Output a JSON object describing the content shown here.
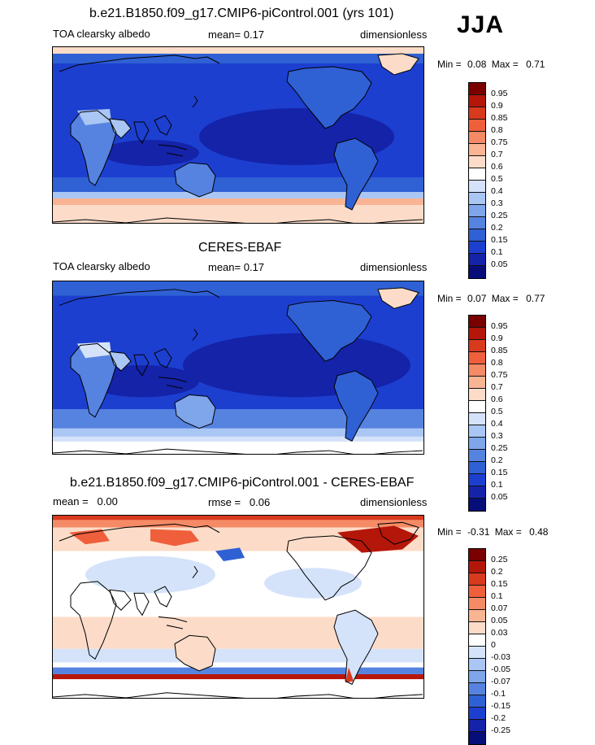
{
  "season": "JJA",
  "panels": [
    {
      "title": "b.e21.B1850.f09_g17.CMIP6-piControl.001 (yrs 101)",
      "left_label": "TOA clearsky albedo",
      "center_label": "mean=  0.17",
      "right_label": "dimensionless",
      "min_label": "Min =",
      "min_value": "0.08",
      "max_label": "Max =",
      "max_value": "0.71",
      "colorbar": {
        "colors": [
          "#7a0000",
          "#b5160a",
          "#d83a1e",
          "#ef5f3c",
          "#f58a66",
          "#f9b493",
          "#fcdcc8",
          "#ffffff",
          "#d4e3fa",
          "#aac6f4",
          "#7fa5ea",
          "#5683e0",
          "#2f60d4",
          "#1d3fd0",
          "#1423a8",
          "#070e7a"
        ],
        "labels": [
          "0.95",
          "0.9",
          "0.85",
          "0.8",
          "0.75",
          "0.7",
          "0.6",
          "0.5",
          "0.4",
          "0.3",
          "0.25",
          "0.2",
          "0.15",
          "0.1",
          "0.05"
        ]
      }
    },
    {
      "title": "CERES-EBAF",
      "left_label": "TOA clearsky albedo",
      "center_label": "mean=  0.17",
      "right_label": "dimensionless",
      "min_label": "Min =",
      "min_value": "0.07",
      "max_label": "Max =",
      "max_value": "0.77",
      "colorbar": {
        "colors": [
          "#7a0000",
          "#b5160a",
          "#d83a1e",
          "#ef5f3c",
          "#f58a66",
          "#f9b493",
          "#fcdcc8",
          "#ffffff",
          "#d4e3fa",
          "#aac6f4",
          "#7fa5ea",
          "#5683e0",
          "#2f60d4",
          "#1d3fd0",
          "#1423a8",
          "#070e7a"
        ],
        "labels": [
          "0.95",
          "0.9",
          "0.85",
          "0.8",
          "0.75",
          "0.7",
          "0.6",
          "0.5",
          "0.4",
          "0.3",
          "0.25",
          "0.2",
          "0.15",
          "0.1",
          "0.05"
        ]
      }
    },
    {
      "title": "b.e21.B1850.f09_g17.CMIP6-piControl.001 - CERES-EBAF",
      "left_label": "mean =   0.00",
      "center_label": "rmse =   0.06",
      "right_label": "dimensionless",
      "min_label": "Min =",
      "min_value": "-0.31",
      "max_label": "Max =",
      "max_value": "0.48",
      "colorbar": {
        "colors": [
          "#7a0000",
          "#b5160a",
          "#d83a1e",
          "#ef5f3c",
          "#f58a66",
          "#f9b493",
          "#fcdcc8",
          "#ffffff",
          "#d4e3fa",
          "#aac6f4",
          "#7fa5ea",
          "#5683e0",
          "#2f60d4",
          "#1d3fd0",
          "#1423a8",
          "#070e7a"
        ],
        "labels": [
          "0.25",
          "0.2",
          "0.15",
          "0.1",
          "0.07",
          "0.05",
          "0.03",
          "0",
          "-0.03",
          "-0.05",
          "-0.07",
          "-0.1",
          "-0.15",
          "-0.2",
          "-0.25"
        ]
      }
    }
  ]
}
